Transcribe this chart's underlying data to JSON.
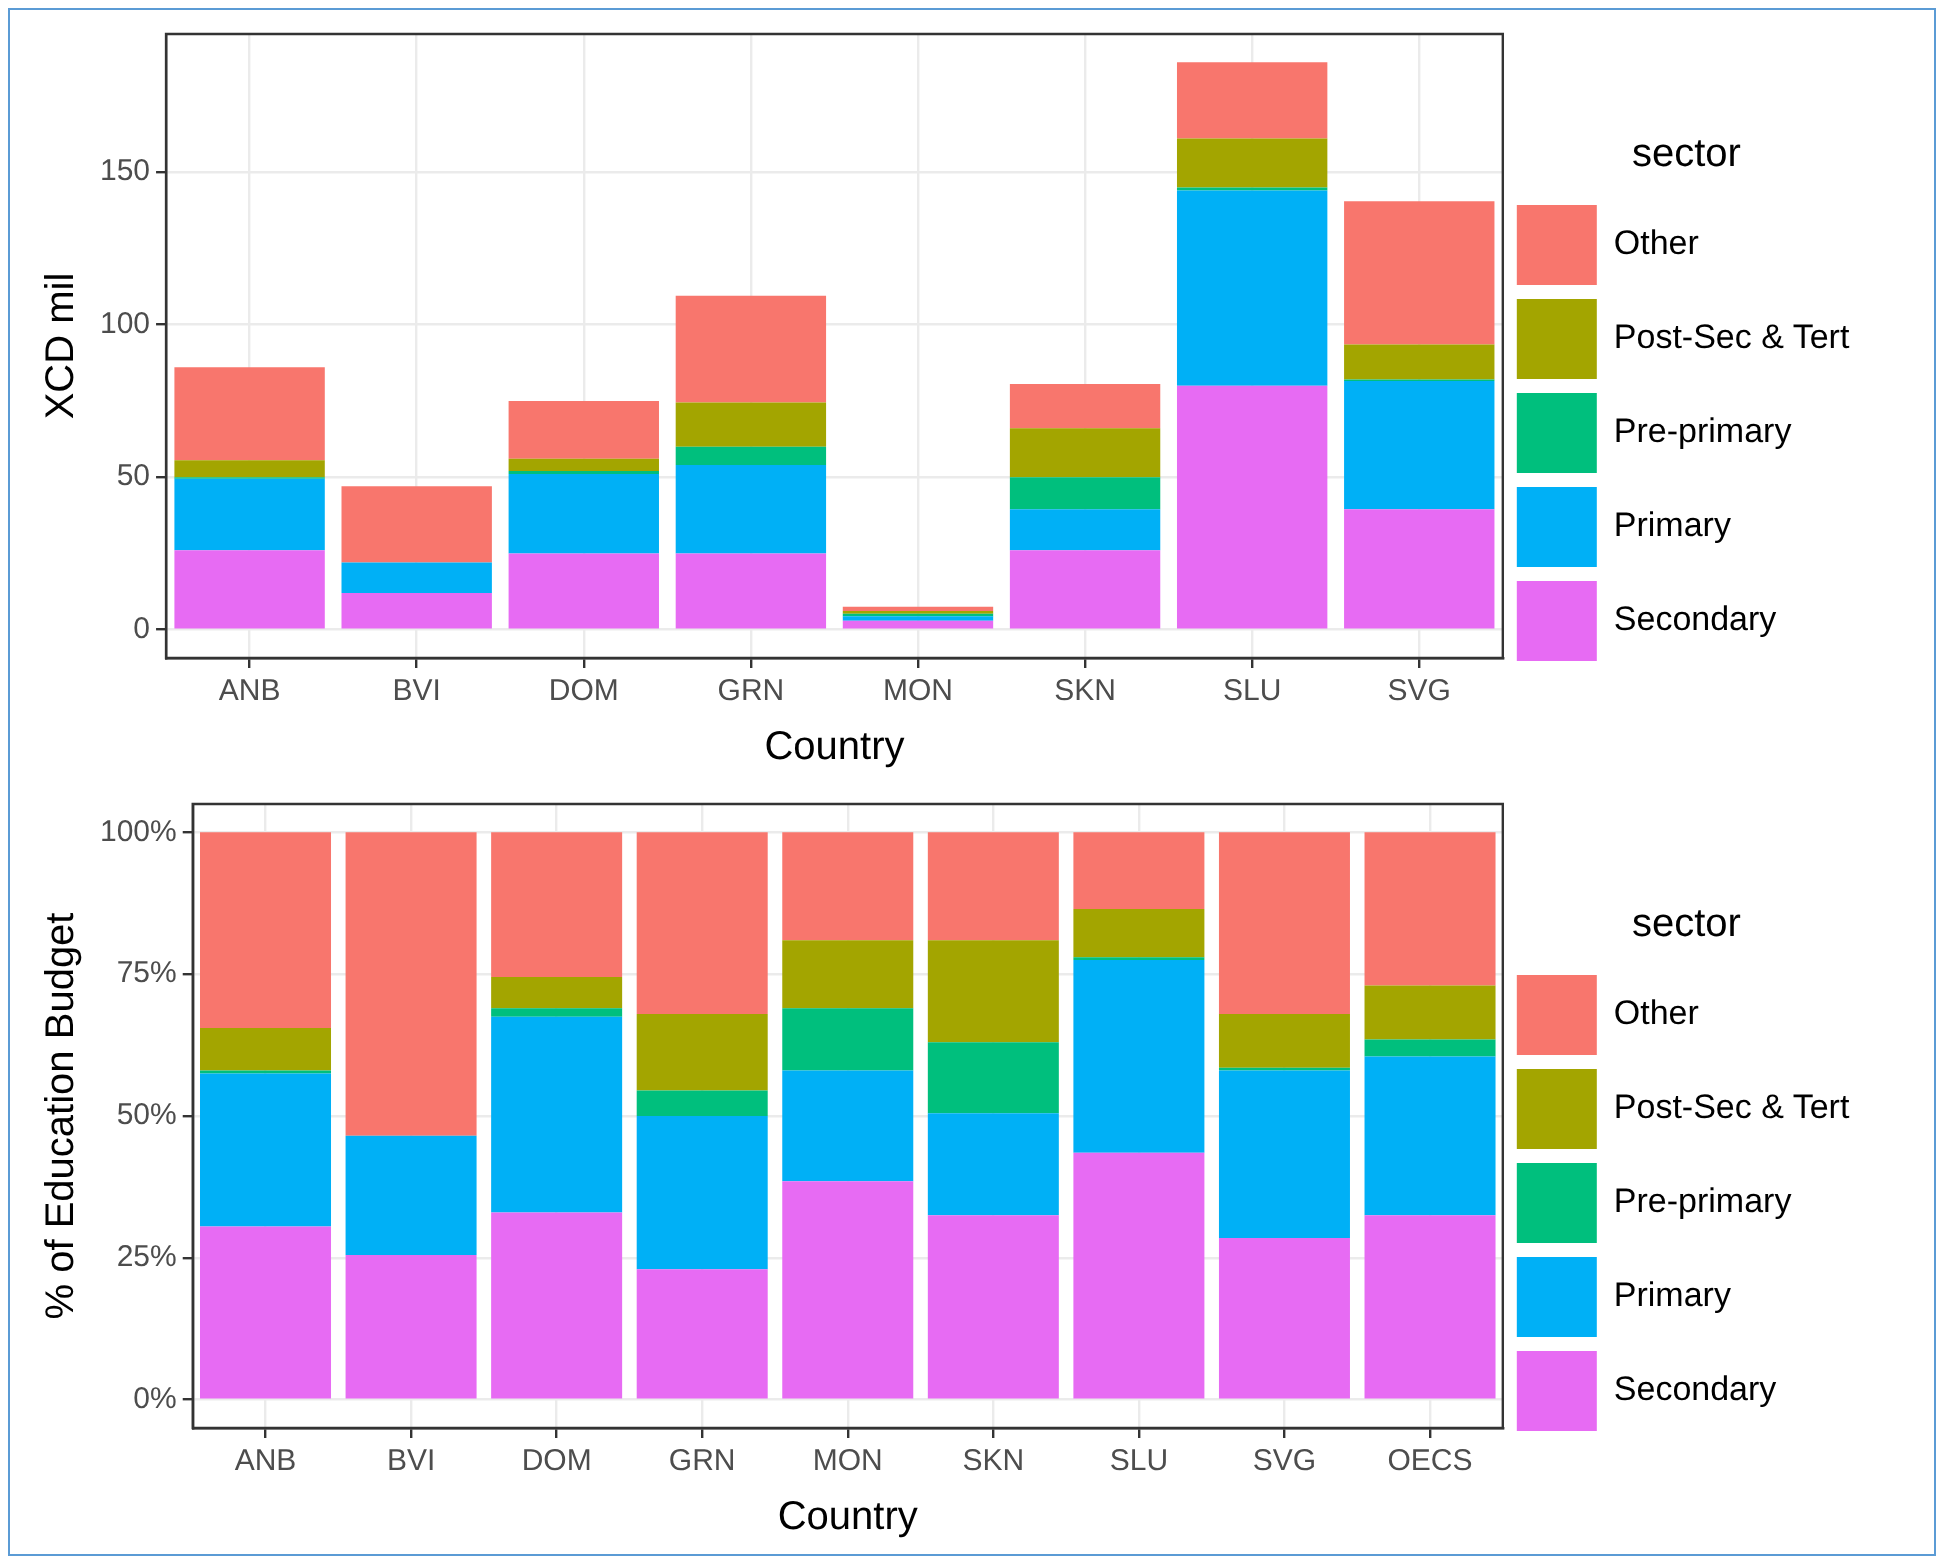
{
  "chart_data": [
    {
      "type": "bar",
      "stacked": true,
      "xlabel": "Country",
      "ylabel": "XCD mil",
      "legend_title": "sector",
      "legend": "right",
      "grid": true,
      "categories": [
        "ANB",
        "BVI",
        "DOM",
        "GRN",
        "MON",
        "SKN",
        "SLU",
        "SVG"
      ],
      "ylim": [
        -9.3,
        195.3
      ],
      "yticks": [
        0,
        50,
        100,
        150
      ],
      "series": [
        {
          "name": "Secondary",
          "color": "#e76bf3",
          "values": [
            26,
            12,
            25,
            25,
            2.9,
            26,
            80,
            39.5
          ]
        },
        {
          "name": "Primary",
          "color": "#00b0f6",
          "values": [
            23.5,
            10,
            26,
            29,
            1.5,
            13.5,
            64,
            42
          ]
        },
        {
          "name": "Pre-primary",
          "color": "#00bf7d",
          "values": [
            0.5,
            0,
            1,
            6,
            0.8,
            10.5,
            1,
            0.5
          ]
        },
        {
          "name": "Post-Sec & Tert",
          "color": "#a3a500",
          "values": [
            5.5,
            0,
            4,
            14.5,
            0.9,
            16,
            16,
            11.5
          ]
        },
        {
          "name": "Other",
          "color": "#f8766d",
          "values": [
            30.5,
            25,
            19,
            35,
            1.4,
            14.5,
            25,
            47
          ]
        }
      ]
    },
    {
      "type": "bar",
      "stacked": true,
      "xlabel": "Country",
      "ylabel": "% of Education Budget",
      "legend_title": "sector",
      "legend": "right",
      "grid": true,
      "categories": [
        "ANB",
        "BVI",
        "DOM",
        "GRN",
        "MON",
        "SKN",
        "SLU",
        "SVG",
        "OECS"
      ],
      "ylim": [
        -5,
        105
      ],
      "yticks": [
        {
          "value": 0,
          "label": "0%"
        },
        {
          "value": 25,
          "label": "25%"
        },
        {
          "value": 50,
          "label": "50%"
        },
        {
          "value": 75,
          "label": "75%"
        },
        {
          "value": 100,
          "label": "100%"
        }
      ],
      "series": [
        {
          "name": "Secondary",
          "color": "#e76bf3",
          "values": [
            30.5,
            25.5,
            33,
            23,
            38.5,
            32.5,
            43.5,
            28.5,
            32.5
          ]
        },
        {
          "name": "Primary",
          "color": "#00b0f6",
          "values": [
            27,
            21,
            34.5,
            27,
            19.5,
            18,
            34,
            29.5,
            28
          ]
        },
        {
          "name": "Pre-primary",
          "color": "#00bf7d",
          "values": [
            0.5,
            0,
            1.5,
            4.5,
            11,
            12.5,
            0.5,
            0.5,
            3
          ]
        },
        {
          "name": "Post-Sec & Tert",
          "color": "#a3a500",
          "values": [
            7.5,
            0,
            5.5,
            13.5,
            12,
            18,
            8.5,
            9.5,
            9.5
          ]
        },
        {
          "name": "Other",
          "color": "#f8766d",
          "values": [
            34.5,
            53.5,
            25.5,
            32,
            19,
            19,
            13.5,
            32,
            27
          ]
        }
      ]
    }
  ]
}
